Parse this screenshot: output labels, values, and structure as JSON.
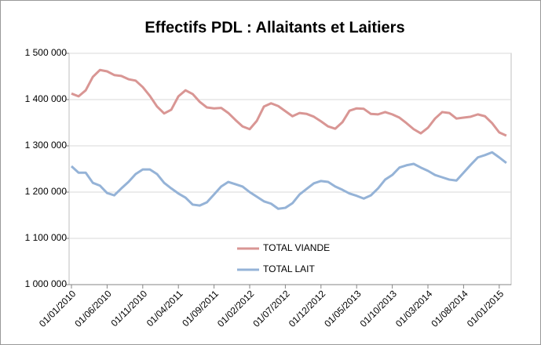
{
  "chart_data": {
    "type": "line",
    "title": "Effectifs PDL : Allaitants et Laitiers",
    "categories": [
      "01/01/2010",
      null,
      null,
      null,
      null,
      "01/06/2010",
      null,
      null,
      null,
      null,
      "01/11/2010",
      null,
      null,
      null,
      null,
      "01/04/2011",
      null,
      null,
      null,
      null,
      "01/09/2011",
      null,
      null,
      null,
      null,
      "01/02/2012",
      null,
      null,
      null,
      null,
      "01/07/2012",
      null,
      null,
      null,
      null,
      "01/12/2012",
      null,
      null,
      null,
      null,
      "01/05/2013",
      null,
      null,
      null,
      null,
      "01/10/2013",
      null,
      null,
      null,
      null,
      "01/03/2014",
      null,
      null,
      null,
      null,
      "01/08/2014",
      null,
      null,
      null,
      null,
      "01/01/2015",
      null
    ],
    "series": [
      {
        "name": "TOTAL VIANDE",
        "color": "#d99694",
        "values": [
          1413000,
          1407000,
          1420000,
          1449000,
          1464000,
          1461000,
          1453000,
          1451000,
          1444000,
          1441000,
          1427000,
          1408000,
          1385000,
          1370000,
          1378000,
          1407000,
          1420000,
          1412000,
          1395000,
          1383000,
          1381000,
          1382000,
          1371000,
          1356000,
          1342000,
          1336000,
          1354000,
          1385000,
          1392000,
          1386000,
          1375000,
          1364000,
          1371000,
          1369000,
          1363000,
          1353000,
          1342000,
          1337000,
          1351000,
          1376000,
          1381000,
          1380000,
          1369000,
          1368000,
          1373000,
          1368000,
          1361000,
          1349000,
          1336000,
          1327000,
          1339000,
          1359000,
          1373000,
          1371000,
          1359000,
          1361000,
          1363000,
          1368000,
          1364000,
          1349000,
          1329000,
          1322000
        ]
      },
      {
        "name": "TOTAL LAIT",
        "color": "#95b3d7",
        "values": [
          1256000,
          1242000,
          1242000,
          1220000,
          1214000,
          1198000,
          1193000,
          1208000,
          1222000,
          1239000,
          1249000,
          1249000,
          1239000,
          1220000,
          1208000,
          1197000,
          1188000,
          1173000,
          1171000,
          1178000,
          1195000,
          1212000,
          1222000,
          1217000,
          1212000,
          1200000,
          1190000,
          1180000,
          1175000,
          1164000,
          1166000,
          1176000,
          1195000,
          1207000,
          1219000,
          1224000,
          1222000,
          1212000,
          1205000,
          1197000,
          1192000,
          1186000,
          1193000,
          1208000,
          1227000,
          1237000,
          1253000,
          1258000,
          1261000,
          1253000,
          1246000,
          1237000,
          1232000,
          1227000,
          1225000,
          1242000,
          1259000,
          1275000,
          1280000,
          1286000,
          1275000,
          1263000
        ]
      }
    ],
    "ylim": [
      1000000,
      1500000
    ],
    "yticks": [
      {
        "value": 1000000,
        "label": "1 000 000"
      },
      {
        "value": 1100000,
        "label": "1 100 000"
      },
      {
        "value": 1200000,
        "label": "1 200 000"
      },
      {
        "value": 1300000,
        "label": "1 300 000"
      },
      {
        "value": 1400000,
        "label": "1 400 000"
      },
      {
        "value": 1500000,
        "label": "1 500 000"
      }
    ],
    "grid": true
  }
}
